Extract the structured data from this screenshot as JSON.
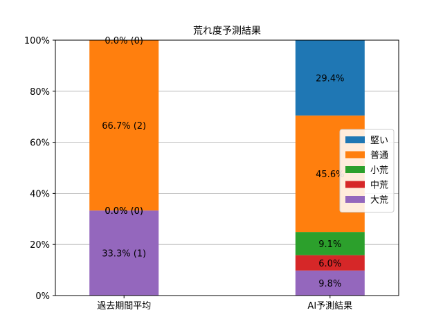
{
  "chart_data": {
    "type": "bar",
    "stacked": true,
    "title": "荒れ度予測結果",
    "xlabel": "",
    "ylabel": "",
    "ylim": [
      0,
      100
    ],
    "yticks": [
      "0%",
      "20%",
      "40%",
      "60%",
      "80%",
      "100%"
    ],
    "grid": "y",
    "legend_position": "right",
    "categories": [
      "過去期間平均",
      "AI予測結果"
    ],
    "series": [
      {
        "name": "大荒",
        "color": "#9467bd",
        "values": [
          33.3,
          9.8
        ],
        "labels": [
          "33.3% (1)",
          "9.8%"
        ]
      },
      {
        "name": "中荒",
        "color": "#d62728",
        "values": [
          0.0,
          6.0
        ],
        "labels": [
          "0.0% (0)",
          "6.0%"
        ]
      },
      {
        "name": "小荒",
        "color": "#2ca02c",
        "values": [
          0.0,
          9.1
        ],
        "labels": [
          "0.0% (0)",
          "9.1%"
        ]
      },
      {
        "name": "普通",
        "color": "#ff7f0e",
        "values": [
          66.7,
          45.6
        ],
        "labels": [
          "66.7% (2)",
          "45.6%"
        ]
      },
      {
        "name": "堅い",
        "color": "#1f77b4",
        "values": [
          0.0,
          29.4
        ],
        "labels": [
          "0.0% (0)",
          "29.4%"
        ]
      }
    ],
    "legend_order": [
      "堅い",
      "普通",
      "小荒",
      "中荒",
      "大荒"
    ]
  }
}
